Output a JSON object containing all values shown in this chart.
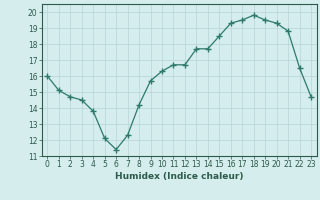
{
  "x": [
    0,
    1,
    2,
    3,
    4,
    5,
    6,
    7,
    8,
    9,
    10,
    11,
    12,
    13,
    14,
    15,
    16,
    17,
    18,
    19,
    20,
    21,
    22,
    23
  ],
  "y": [
    16.0,
    15.1,
    14.7,
    14.5,
    13.8,
    12.1,
    11.4,
    12.3,
    14.2,
    15.7,
    16.3,
    16.7,
    16.7,
    17.7,
    17.7,
    18.5,
    19.3,
    19.5,
    19.8,
    19.5,
    19.3,
    18.8,
    16.5,
    14.7
  ],
  "line_color": "#2d7a6a",
  "marker": "+",
  "marker_size": 4,
  "bg_color": "#d5eded",
  "grid_color": "#b8d4d4",
  "xlabel": "Humidex (Indice chaleur)",
  "ylim": [
    11,
    20.5
  ],
  "xlim": [
    -0.5,
    23.5
  ],
  "yticks": [
    11,
    12,
    13,
    14,
    15,
    16,
    17,
    18,
    19,
    20
  ],
  "xticks": [
    0,
    1,
    2,
    3,
    4,
    5,
    6,
    7,
    8,
    9,
    10,
    11,
    12,
    13,
    14,
    15,
    16,
    17,
    18,
    19,
    20,
    21,
    22,
    23
  ],
  "tick_color": "#2d5a4a",
  "label_fontsize": 6.5,
  "tick_fontsize": 5.5
}
